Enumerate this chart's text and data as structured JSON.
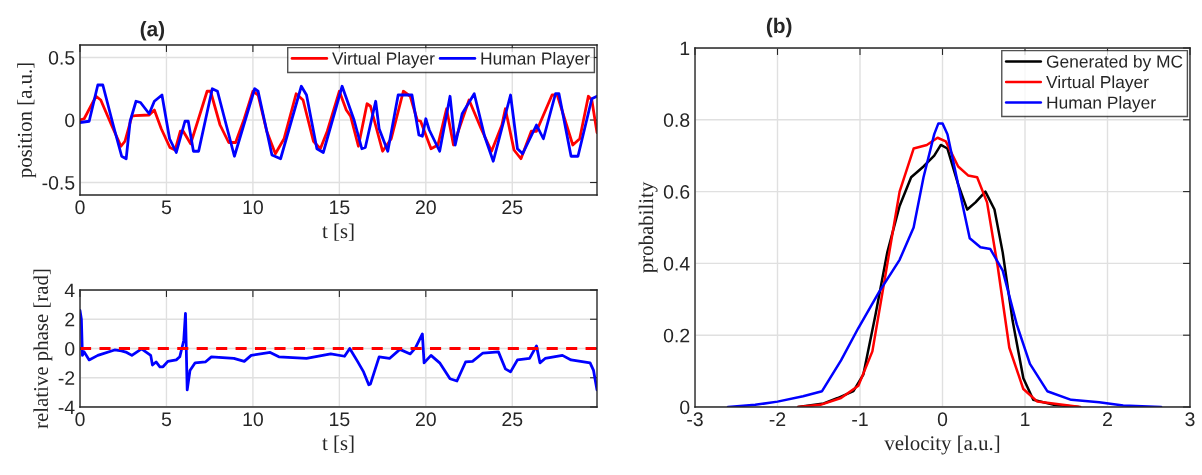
{
  "chart_data": [
    {
      "type": "line",
      "title": "(a)",
      "xlabel": "t [s]",
      "ylabel": "position [a.u.]",
      "xlim": [
        0,
        29.9
      ],
      "xticks": [
        0,
        5,
        10,
        15,
        20,
        25
      ],
      "ylim": [
        -0.6,
        0.6
      ],
      "yticks": [
        -0.5,
        0,
        0.5
      ],
      "grid": true,
      "legend": "top right",
      "series": [
        {
          "name": "Virtual Player",
          "color": "#ff0000",
          "x": [
            0,
            0.24,
            0.93,
            1.2,
            1.82,
            2.37,
            2.6,
            3.0,
            3.2,
            4.0,
            4.3,
            4.7,
            5.2,
            5.5,
            5.8,
            5.97,
            6.4,
            6.9,
            7.35,
            7.55,
            8.1,
            8.6,
            9.0,
            9.5,
            10.0,
            10.3,
            10.8,
            11.3,
            11.8,
            12.5,
            12.9,
            13.5,
            13.9,
            14.3,
            15.0,
            15.4,
            15.65,
            16.1,
            16.6,
            16.8,
            17.5,
            18.0,
            18.7,
            19.1,
            19.5,
            19.7,
            20.3,
            20.7,
            21.2,
            21.6,
            22.5,
            23.2,
            23.8,
            24.4,
            24.6,
            25.1,
            25.5,
            26.1,
            26.4,
            27.3,
            27.6,
            28.5,
            28.9,
            29.4,
            29.6,
            29.9
          ],
          "values": [
            0,
            0.01,
            0.19,
            0.16,
            -0.04,
            -0.21,
            -0.17,
            0.03,
            0.035,
            0.04,
            0.08,
            -0.07,
            -0.22,
            -0.24,
            -0.09,
            -0.09,
            -0.19,
            0.03,
            0.23,
            0.23,
            -0.04,
            -0.18,
            -0.18,
            0.01,
            0.23,
            0.2,
            -0.09,
            -0.27,
            -0.15,
            0.21,
            0.16,
            -0.17,
            -0.23,
            -0.09,
            0.23,
            0.08,
            0.03,
            -0.21,
            0.13,
            0.11,
            -0.25,
            -0.15,
            0.23,
            0.19,
            0.0,
            -0.01,
            -0.23,
            -0.2,
            0.09,
            -0.2,
            0.16,
            -0.07,
            -0.25,
            -0.04,
            0.09,
            -0.24,
            -0.31,
            -0.09,
            -0.09,
            0.2,
            0.2,
            -0.2,
            -0.15,
            0.19,
            0.16,
            -0.1
          ]
        },
        {
          "name": "Human Player",
          "color": "#0000ff",
          "x": [
            0,
            0.53,
            1.03,
            1.32,
            1.92,
            2.41,
            2.67,
            2.9,
            3.24,
            3.5,
            4.0,
            4.3,
            4.74,
            5.18,
            5.57,
            6.07,
            6.26,
            6.56,
            6.86,
            7.65,
            7.95,
            8.93,
            10.1,
            10.3,
            11.1,
            11.6,
            12.8,
            13.1,
            13.7,
            14.07,
            15.16,
            15.85,
            16.3,
            16.5,
            17.1,
            17.3,
            17.8,
            18.4,
            19.2,
            19.6,
            19.8,
            20.0,
            20.2,
            20.8,
            21.4,
            21.7,
            22.1,
            22.8,
            23.4,
            23.9,
            24.9,
            25.3,
            25.6,
            26.4,
            26.8,
            27.5,
            27.7,
            28.4,
            28.8,
            29.6,
            29.9
          ],
          "values": [
            -0.02,
            -0.01,
            0.28,
            0.28,
            -0.04,
            -0.29,
            -0.31,
            -0.01,
            0.15,
            0.14,
            0.05,
            0.15,
            0.2,
            -0.15,
            -0.26,
            -0.01,
            -0.01,
            -0.25,
            -0.25,
            0.25,
            0.23,
            -0.29,
            0.25,
            0.23,
            -0.28,
            -0.31,
            0.27,
            0.2,
            -0.23,
            -0.26,
            0.27,
            0.0,
            -0.23,
            -0.22,
            0.15,
            -0.07,
            -0.25,
            0.2,
            0.2,
            -0.12,
            -0.13,
            0.01,
            -0.08,
            -0.25,
            0.19,
            -0.2,
            0.05,
            0.21,
            -0.13,
            -0.33,
            0.2,
            -0.23,
            -0.27,
            -0.04,
            -0.15,
            0.21,
            0.21,
            -0.29,
            -0.29,
            0.17,
            0.19
          ]
        }
      ]
    },
    {
      "type": "line",
      "xlabel": "t [s]",
      "ylabel": "relative phase [rad]",
      "xlim": [
        0,
        29.9
      ],
      "xticks": [
        0,
        5,
        10,
        15,
        20,
        25
      ],
      "ylim": [
        -4,
        4
      ],
      "yticks": [
        -4,
        -2,
        0,
        2,
        4
      ],
      "grid": true,
      "ref_lines": [
        {
          "axis": "y",
          "value": 0,
          "color": "#ff0000",
          "line_style": "dashed"
        }
      ],
      "series": [
        {
          "color": "#0000ff",
          "x": [
            0,
            0.08,
            0.14,
            0.24,
            0.53,
            1.03,
            2.0,
            2.4,
            2.7,
            3.0,
            3.56,
            4.09,
            4.19,
            4.4,
            4.62,
            4.8,
            5.08,
            5.57,
            5.77,
            6.0,
            6.1,
            6.2,
            6.36,
            6.66,
            7.25,
            7.6,
            8.9,
            9.5,
            9.9,
            11.0,
            11.5,
            13.1,
            14.5,
            15.3,
            15.6,
            16.05,
            16.4,
            16.7,
            16.8,
            17.3,
            17.9,
            18.5,
            19.1,
            19.4,
            19.8,
            19.9,
            20.3,
            20.8,
            21.4,
            21.8,
            22.3,
            22.7,
            23.3,
            24.2,
            24.6,
            24.9,
            25.3,
            26.0,
            26.4,
            26.6,
            26.9,
            27.9,
            28.4,
            29.5,
            29.7,
            29.9
          ],
          "values": [
            2.6,
            2.0,
            -0.47,
            -0.23,
            -0.78,
            -0.47,
            -0.1,
            -0.16,
            -0.27,
            -0.47,
            -0.02,
            -0.47,
            -1.13,
            -0.92,
            -1.25,
            -1.25,
            -0.88,
            -0.78,
            -0.57,
            0.55,
            2.4,
            -2.83,
            -1.5,
            -0.98,
            -0.92,
            -0.57,
            -0.68,
            -0.88,
            -0.47,
            -0.27,
            -0.57,
            -0.68,
            -0.37,
            -0.53,
            0.0,
            -0.88,
            -1.6,
            -2.48,
            -2.42,
            -0.57,
            -0.68,
            -0.06,
            -0.37,
            0.04,
            1.0,
            -0.98,
            -0.47,
            -0.98,
            -2.07,
            -2.22,
            -0.92,
            -0.88,
            -0.31,
            -0.23,
            -1.39,
            -1.6,
            -0.78,
            -0.68,
            0.18,
            -0.98,
            -0.68,
            -0.47,
            -0.78,
            -0.98,
            -1.5,
            -2.83
          ]
        }
      ]
    },
    {
      "type": "line",
      "title": "(b)",
      "xlabel": "velocity [a.u.]",
      "ylabel": "probability",
      "xlim": [
        -3,
        3
      ],
      "xticks": [
        -3,
        -2,
        -1,
        0,
        1,
        2,
        3
      ],
      "ylim": [
        0,
        1
      ],
      "yticks": [
        0,
        0.2,
        0.4,
        0.6,
        0.8,
        1
      ],
      "grid": true,
      "legend": "top right",
      "series": [
        {
          "name": "Generated by MC",
          "color": "#000000",
          "x": [
            -1.75,
            -1.44,
            -1.27,
            -1.08,
            -0.96,
            -0.81,
            -0.67,
            -0.52,
            -0.38,
            -0.23,
            -0.1,
            -0.02,
            0.06,
            0.19,
            0.3,
            0.4,
            0.52,
            0.63,
            0.73,
            0.85,
            0.98,
            1.1,
            1.35,
            1.65
          ],
          "values": [
            0,
            0.01,
            0.025,
            0.044,
            0.09,
            0.26,
            0.43,
            0.56,
            0.64,
            0.67,
            0.7,
            0.73,
            0.72,
            0.62,
            0.55,
            0.57,
            0.6,
            0.55,
            0.43,
            0.24,
            0.08,
            0.02,
            0.006,
            0
          ]
        },
        {
          "name": "Virtual Player",
          "color": "#ff0000",
          "x": [
            -1.75,
            -1.48,
            -1.23,
            -1.02,
            -0.85,
            -0.69,
            -0.52,
            -0.35,
            -0.19,
            -0.06,
            0.04,
            0.19,
            0.31,
            0.42,
            0.54,
            0.67,
            0.81,
            0.98,
            1.15,
            1.67
          ],
          "values": [
            0,
            0.006,
            0.025,
            0.059,
            0.155,
            0.37,
            0.6,
            0.72,
            0.73,
            0.75,
            0.74,
            0.67,
            0.645,
            0.64,
            0.57,
            0.39,
            0.165,
            0.05,
            0.015,
            0
          ]
        },
        {
          "name": "Human Player",
          "color": "#0000ff",
          "x": [
            -2.6,
            -2.27,
            -2.0,
            -1.69,
            -1.46,
            -1.23,
            -1.02,
            -0.77,
            -0.52,
            -0.35,
            -0.23,
            -0.1,
            -0.05,
            0,
            0.06,
            0.19,
            0.33,
            0.46,
            0.58,
            0.73,
            0.9,
            1.06,
            1.27,
            1.56,
            1.9,
            2.19,
            2.65
          ],
          "values": [
            0,
            0.006,
            0.015,
            0.03,
            0.044,
            0.13,
            0.22,
            0.32,
            0.41,
            0.5,
            0.64,
            0.76,
            0.79,
            0.79,
            0.76,
            0.62,
            0.47,
            0.445,
            0.44,
            0.38,
            0.23,
            0.12,
            0.044,
            0.02,
            0.013,
            0.004,
            0
          ]
        }
      ]
    }
  ]
}
